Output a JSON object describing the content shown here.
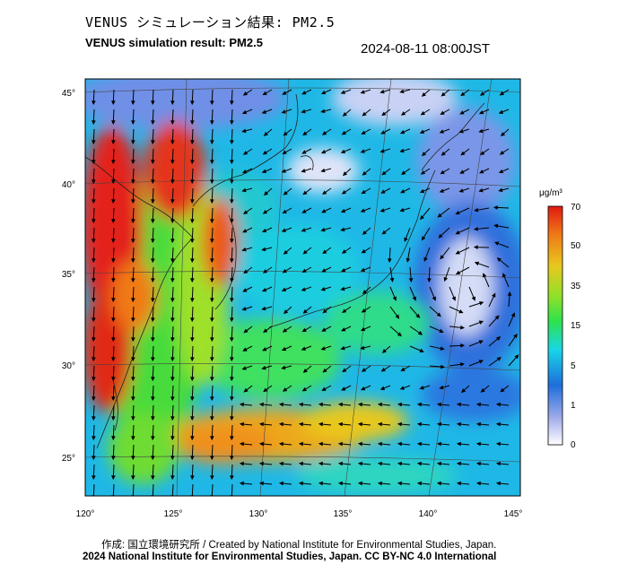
{
  "header": {
    "title_jp": "VENUS シミュレーション結果: PM2.5",
    "title_en": "VENUS simulation result: PM2.5",
    "timestamp": "2024-08-11 08:00JST"
  },
  "map": {
    "longitude_labels": [
      "120°",
      "125°",
      "130°",
      "135°",
      "140°",
      "145°"
    ],
    "latitude_labels": [
      "45°",
      "40°",
      "35°",
      "30°",
      "25°"
    ],
    "longitude_values": [
      120,
      125,
      130,
      135,
      140,
      145
    ],
    "latitude_values": [
      45,
      40,
      35,
      30,
      25
    ]
  },
  "colorbar": {
    "unit": "μg/m³",
    "ticks": [
      "70",
      "50",
      "35",
      "15",
      "5",
      "1",
      "0"
    ],
    "colors": [
      "#ffffff",
      "#9aa8e8",
      "#1e6edc",
      "#18d6e6",
      "#2fe24a",
      "#8ee02a",
      "#e8c81e",
      "#f07a18",
      "#e01a10"
    ]
  },
  "footer": {
    "credit": "作成: 国立環境研究所 / Created by National Institute for Environmental Studies, Japan.",
    "copyright": "2024 National Institute for Environmental Studies, Japan. CC BY-NC 4.0 International"
  }
}
